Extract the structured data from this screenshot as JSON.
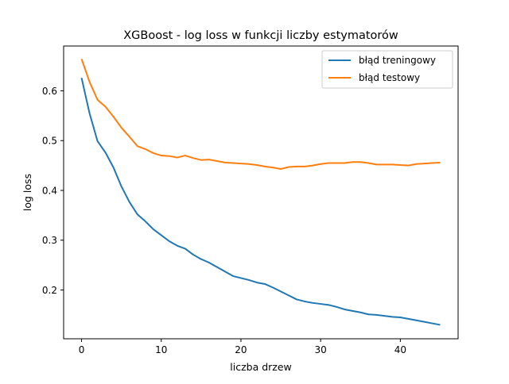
{
  "chart_data": {
    "type": "line",
    "title": "XGBoost - log loss w funkcji liczby estymatorów",
    "xlabel": "liczba drzew",
    "ylabel": "log loss",
    "xlim": [
      -2.25,
      47.25
    ],
    "ylim": [
      0.102,
      0.69
    ],
    "xticks": [
      0,
      10,
      20,
      30,
      40
    ],
    "yticks": [
      0.2,
      0.3,
      0.4,
      0.5,
      0.6
    ],
    "xtick_labels": [
      "0",
      "10",
      "20",
      "30",
      "40"
    ],
    "ytick_labels": [
      "0.2",
      "0.3",
      "0.4",
      "0.5",
      "0.6"
    ],
    "grid": false,
    "legend_position": "top-right",
    "x": [
      0,
      1,
      2,
      3,
      4,
      5,
      6,
      7,
      8,
      9,
      10,
      11,
      12,
      13,
      14,
      15,
      16,
      17,
      18,
      19,
      20,
      21,
      22,
      23,
      24,
      25,
      26,
      27,
      28,
      29,
      30,
      31,
      32,
      33,
      34,
      35,
      36,
      37,
      38,
      39,
      40,
      41,
      42,
      43,
      44,
      45
    ],
    "series": [
      {
        "name": "błąd treningowy",
        "color": "#1f77b4",
        "values": [
          0.626,
          0.555,
          0.499,
          0.476,
          0.446,
          0.408,
          0.377,
          0.352,
          0.338,
          0.322,
          0.31,
          0.298,
          0.289,
          0.283,
          0.271,
          0.262,
          0.255,
          0.246,
          0.237,
          0.228,
          0.224,
          0.22,
          0.215,
          0.212,
          0.205,
          0.197,
          0.189,
          0.181,
          0.177,
          0.174,
          0.172,
          0.17,
          0.166,
          0.161,
          0.158,
          0.155,
          0.151,
          0.15,
          0.148,
          0.146,
          0.145,
          0.142,
          0.139,
          0.136,
          0.133,
          0.13
        ]
      },
      {
        "name": "błąd testowy",
        "color": "#ff7f0e",
        "values": [
          0.664,
          0.618,
          0.582,
          0.568,
          0.548,
          0.526,
          0.508,
          0.489,
          0.483,
          0.475,
          0.47,
          0.469,
          0.466,
          0.47,
          0.465,
          0.461,
          0.462,
          0.459,
          0.456,
          0.455,
          0.454,
          0.453,
          0.451,
          0.448,
          0.446,
          0.443,
          0.447,
          0.448,
          0.448,
          0.45,
          0.453,
          0.455,
          0.455,
          0.455,
          0.457,
          0.457,
          0.455,
          0.452,
          0.452,
          0.452,
          0.451,
          0.45,
          0.453,
          0.454,
          0.455,
          0.456
        ]
      }
    ]
  }
}
